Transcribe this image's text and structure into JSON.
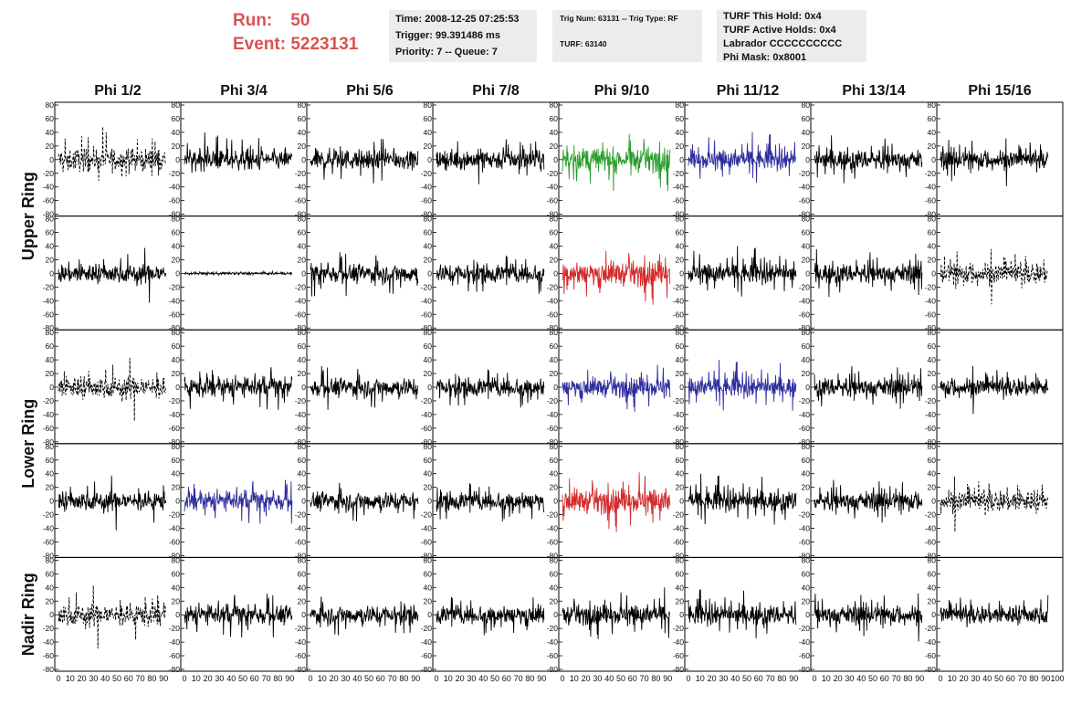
{
  "header": {
    "run_label": "Run:",
    "run_value": "50",
    "event_label": "Event:",
    "event_value": "5223131",
    "run_color": "#d9534f"
  },
  "info": {
    "time": "Time: 2008-12-25 07:25:53",
    "trigger": "Trigger: 99.391486 ms",
    "priority": "Priority: 7 -- Queue: 7",
    "trig_num": "Trig Num: 63131 -- Trig Type: RF",
    "turf": "TURF: 63140",
    "turf_this_hold": "TURF This Hold: 0x4",
    "turf_active_holds": "TURF Active Holds: 0x4",
    "labrador": "Labrador CCCCCCCCCC",
    "phi_mask": "Phi Mask: 0x8001"
  },
  "columns": [
    "Phi 1/2",
    "Phi 3/4",
    "Phi 5/6",
    "Phi 7/8",
    "Phi 9/10",
    "Phi 11/12",
    "Phi 13/14",
    "Phi 15/16"
  ],
  "ring_labels": [
    "Upper Ring",
    "Lower Ring",
    "Nadir Ring"
  ],
  "y_ticks": [
    "80",
    "60",
    "40",
    "20",
    "0",
    "-20",
    "-40",
    "-60",
    "-80"
  ],
  "x_ticks": [
    "0",
    "10",
    "20",
    "30",
    "40",
    "50",
    "60",
    "70",
    "80",
    "90",
    "100"
  ],
  "colors": {
    "black": "#000000",
    "green": "#2a9d2a",
    "blue": "#2d2d9e",
    "red": "#d22a2a"
  },
  "panels": [
    [
      "dashed",
      "black",
      "black",
      "black",
      "green",
      "blue",
      "black",
      "black"
    ],
    [
      "black",
      "flat",
      "black",
      "black",
      "red",
      "black",
      "black",
      "dashed"
    ],
    [
      "dashed",
      "black",
      "black",
      "black",
      "blue",
      "blue",
      "black",
      "black"
    ],
    [
      "black",
      "blue",
      "black",
      "black",
      "red",
      "black",
      "black",
      "dashed"
    ],
    [
      "dashed",
      "black",
      "black",
      "black",
      "black",
      "black",
      "black",
      "black"
    ]
  ]
}
